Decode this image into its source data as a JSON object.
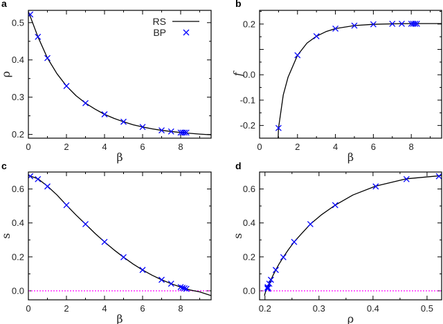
{
  "colors": {
    "rs": "#000000",
    "bp": "#0000ff",
    "zero_line": "#ff00ff"
  },
  "legend": {
    "placement": "top-right",
    "entries": [
      {
        "label": "RS",
        "marker": "line"
      },
      {
        "label": "BP",
        "marker": "cross"
      }
    ]
  },
  "chart_data": [
    {
      "panel": "a",
      "type": "line+scatter",
      "xlabel": "β",
      "ylabel": "ρ",
      "xlim": [
        0,
        9.6
      ],
      "ylim": [
        0.19,
        0.533
      ],
      "xticks": [
        0,
        2,
        4,
        6,
        8
      ],
      "xtick_labels": [
        "0",
        "2",
        "4",
        "6",
        "8"
      ],
      "yticks": [
        0.2,
        0.3,
        0.4,
        0.5
      ],
      "ytick_labels": [
        "0.2",
        "0.3",
        "0.4",
        "0.5"
      ],
      "zero_line": false,
      "series": [
        {
          "name": "RS",
          "style": "line",
          "x": [
            0,
            0.5,
            1,
            1.5,
            2,
            2.5,
            3,
            3.5,
            4,
            4.5,
            5,
            5.5,
            6,
            6.5,
            7,
            7.5,
            8,
            8.5,
            9,
            9.6
          ],
          "y": [
            0.53,
            0.462,
            0.405,
            0.363,
            0.33,
            0.304,
            0.284,
            0.268,
            0.254,
            0.243,
            0.234,
            0.226,
            0.22,
            0.215,
            0.211,
            0.208,
            0.205,
            0.203,
            0.201,
            0.199
          ]
        },
        {
          "name": "BP",
          "style": "cross",
          "x": [
            0.1,
            0.5,
            1,
            2,
            3,
            4,
            5,
            6,
            7,
            7.5,
            8,
            8.1,
            8.2,
            8.3
          ],
          "y": [
            0.522,
            0.462,
            0.405,
            0.33,
            0.284,
            0.254,
            0.234,
            0.22,
            0.211,
            0.208,
            0.205,
            0.205,
            0.205,
            0.205
          ]
        }
      ]
    },
    {
      "panel": "b",
      "type": "line+scatter",
      "xlabel": "β",
      "ylabel": "f",
      "xlim": [
        0,
        9.6
      ],
      "ylim": [
        -0.25,
        0.254
      ],
      "xticks": [
        0,
        2,
        4,
        6,
        8
      ],
      "xtick_labels": [
        "0",
        "2",
        "4",
        "6",
        "8"
      ],
      "yticks": [
        0.2,
        0.1,
        0.0,
        -0.1,
        -0.2
      ],
      "ytick_labels": [
        "0.2",
        "",
        "0.0",
        "-0.1",
        "-0.2"
      ],
      "zero_line": false,
      "series": [
        {
          "name": "RS",
          "style": "line",
          "x": [
            0.98,
            1,
            1.25,
            1.5,
            2,
            2.5,
            3,
            3.5,
            4,
            5,
            6,
            7,
            8,
            9.6
          ],
          "y": [
            -0.25,
            -0.21,
            -0.08,
            -0.01,
            0.077,
            0.125,
            0.152,
            0.17,
            0.182,
            0.194,
            0.199,
            0.201,
            0.202,
            0.202
          ]
        },
        {
          "name": "BP",
          "style": "cross",
          "x": [
            1,
            2,
            3,
            4,
            5,
            6,
            7,
            7.5,
            8,
            8.1,
            8.2,
            8.3
          ],
          "y": [
            -0.21,
            0.077,
            0.152,
            0.182,
            0.194,
            0.199,
            0.201,
            0.201,
            0.201,
            0.201,
            0.201,
            0.201
          ]
        }
      ]
    },
    {
      "panel": "c",
      "type": "line+scatter",
      "xlabel": "β",
      "ylabel": "s",
      "xlim": [
        0,
        9.6
      ],
      "ylim": [
        -0.053,
        0.7
      ],
      "xticks": [
        0,
        2,
        4,
        6,
        8
      ],
      "xtick_labels": [
        "0",
        "2",
        "4",
        "6",
        "8"
      ],
      "yticks": [
        0.0,
        0.2,
        0.4,
        0.6
      ],
      "ytick_labels": [
        "0.0",
        "0.2",
        "0.4",
        "0.6"
      ],
      "zero_line": true,
      "series": [
        {
          "name": "RS",
          "style": "line",
          "x": [
            0,
            0.5,
            1,
            1.5,
            2,
            2.5,
            3,
            3.5,
            4,
            4.5,
            5,
            5.5,
            6,
            6.5,
            7,
            7.5,
            8,
            8.5,
            9,
            9.6
          ],
          "y": [
            0.68,
            0.66,
            0.617,
            0.565,
            0.505,
            0.447,
            0.393,
            0.338,
            0.288,
            0.241,
            0.198,
            0.158,
            0.123,
            0.092,
            0.065,
            0.042,
            0.022,
            0.005,
            -0.006,
            -0.028
          ]
        },
        {
          "name": "BP",
          "style": "cross",
          "x": [
            0.1,
            0.5,
            1,
            2,
            3,
            4,
            5,
            6,
            7,
            7.5,
            8,
            8.1,
            8.2,
            8.3
          ],
          "y": [
            0.675,
            0.658,
            0.615,
            0.505,
            0.393,
            0.288,
            0.198,
            0.123,
            0.065,
            0.042,
            0.022,
            0.018,
            0.015,
            0.012
          ]
        }
      ]
    },
    {
      "panel": "d",
      "type": "line+scatter",
      "xlabel": "ρ",
      "ylabel": "s",
      "xlim": [
        0.19,
        0.527
      ],
      "ylim": [
        -0.053,
        0.7
      ],
      "xticks": [
        0.2,
        0.3,
        0.4,
        0.5
      ],
      "xtick_labels": [
        "0.2",
        "0.3",
        "0.4",
        "0.5"
      ],
      "yticks": [
        0.0,
        0.2,
        0.4,
        0.6
      ],
      "ytick_labels": [
        "0.0",
        "0.2",
        "0.4",
        "0.6"
      ],
      "zero_line": true,
      "series": [
        {
          "name": "RS",
          "style": "line",
          "x": [
            0.53,
            0.462,
            0.405,
            0.363,
            0.33,
            0.304,
            0.284,
            0.268,
            0.254,
            0.243,
            0.234,
            0.226,
            0.22,
            0.215,
            0.211,
            0.208,
            0.205,
            0.203,
            0.201,
            0.199
          ],
          "y": [
            0.68,
            0.66,
            0.617,
            0.565,
            0.505,
            0.447,
            0.393,
            0.338,
            0.288,
            0.241,
            0.198,
            0.158,
            0.123,
            0.092,
            0.065,
            0.042,
            0.022,
            0.005,
            -0.006,
            -0.028
          ]
        },
        {
          "name": "BP",
          "style": "cross",
          "x": [
            0.522,
            0.462,
            0.405,
            0.33,
            0.284,
            0.254,
            0.234,
            0.22,
            0.211,
            0.208,
            0.205,
            0.205,
            0.205,
            0.205
          ],
          "y": [
            0.675,
            0.658,
            0.615,
            0.505,
            0.393,
            0.288,
            0.198,
            0.123,
            0.065,
            0.042,
            0.022,
            0.018,
            0.015,
            0.012
          ]
        }
      ]
    }
  ]
}
